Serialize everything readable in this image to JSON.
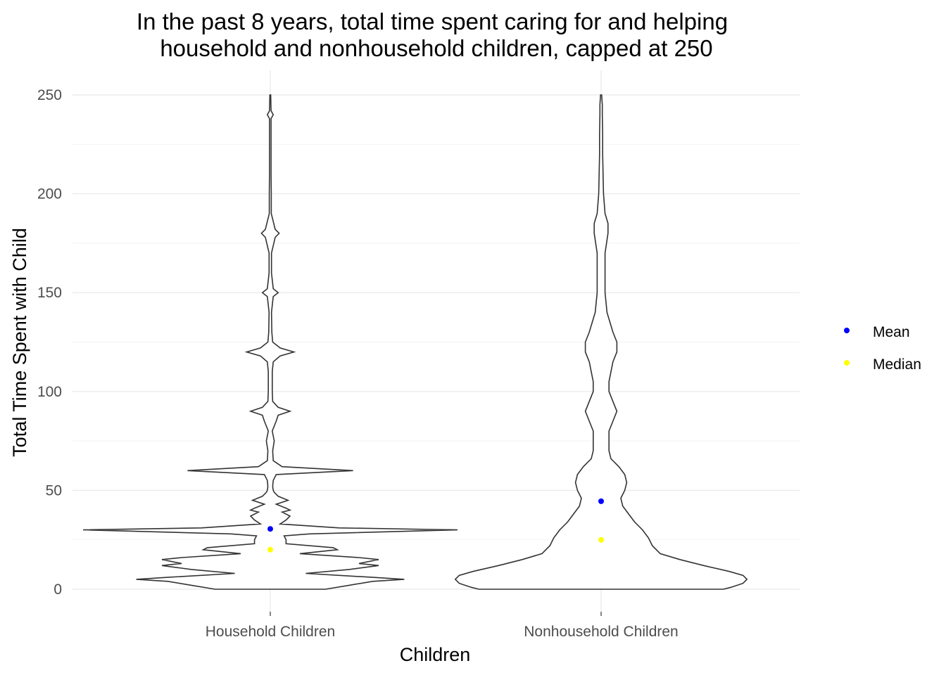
{
  "chart_data": {
    "type": "violin",
    "title_lines": [
      "In the past 8 years, total time spent caring for and helping",
      "household and nonhousehold children, capped at 250"
    ],
    "xlabel": "Children",
    "ylabel": "Total Time Spent with Child",
    "ylim": [
      0,
      250
    ],
    "y_ticks": [
      "0",
      "50",
      "100",
      "150",
      "200",
      "250"
    ],
    "y_tick_values": [
      0,
      50,
      100,
      150,
      200,
      250
    ],
    "categories": [
      "Household Children",
      "Nonhousehold Children"
    ],
    "grid": true,
    "legend_position": "right",
    "legend": [
      {
        "label": "Mean",
        "color": "#0000ff"
      },
      {
        "label": "Median",
        "color": "#ffff00"
      }
    ],
    "mean": [
      30.5,
      44.5
    ],
    "median": [
      20,
      25
    ],
    "density_profiles": [
      {
        "category": "Household Children",
        "y": [
          0,
          2,
          4,
          5,
          6,
          8,
          10,
          12,
          13,
          15,
          16,
          18,
          20,
          21,
          23,
          25,
          27,
          28,
          30,
          31,
          33,
          35,
          37,
          39,
          40,
          41,
          43,
          45,
          47,
          49,
          50,
          52,
          55,
          58,
          60,
          62,
          65,
          70,
          75,
          80,
          85,
          88,
          90,
          92,
          95,
          100,
          110,
          115,
          118,
          120,
          122,
          125,
          130,
          140,
          148,
          150,
          152,
          160,
          170,
          178,
          180,
          182,
          190,
          200,
          210,
          220,
          238,
          240,
          242,
          250
        ],
        "width": [
          0.28,
          0.4,
          0.52,
          0.68,
          0.52,
          0.18,
          0.4,
          0.55,
          0.45,
          0.55,
          0.45,
          0.15,
          0.34,
          0.32,
          0.08,
          0.08,
          0.07,
          0.2,
          0.95,
          0.35,
          0.05,
          0.08,
          0.1,
          0.06,
          0.1,
          0.08,
          0.03,
          0.09,
          0.04,
          0.02,
          0.015,
          0.012,
          0.015,
          0.03,
          0.42,
          0.06,
          0.015,
          0.012,
          0.02,
          0.01,
          0.03,
          0.04,
          0.1,
          0.04,
          0.012,
          0.01,
          0.01,
          0.015,
          0.05,
          0.12,
          0.05,
          0.012,
          0.008,
          0.006,
          0.015,
          0.04,
          0.015,
          0.006,
          0.006,
          0.025,
          0.045,
          0.025,
          0.005,
          0.005,
          0.004,
          0.004,
          0.004,
          0.015,
          0.004,
          0.002
        ]
      },
      {
        "category": "Nonhousehold Children",
        "y": [
          0,
          1,
          3,
          5,
          7,
          9,
          12,
          15,
          18,
          22,
          26,
          30,
          34,
          38,
          42,
          46,
          50,
          54,
          58,
          62,
          66,
          70,
          75,
          80,
          85,
          90,
          95,
          100,
          105,
          110,
          115,
          120,
          125,
          130,
          140,
          150,
          160,
          170,
          180,
          185,
          190,
          200,
          210,
          220,
          230,
          240,
          245,
          250
        ],
        "width": [
          0.62,
          0.66,
          0.72,
          0.74,
          0.72,
          0.65,
          0.52,
          0.4,
          0.3,
          0.26,
          0.24,
          0.21,
          0.17,
          0.14,
          0.11,
          0.1,
          0.12,
          0.13,
          0.12,
          0.09,
          0.05,
          0.04,
          0.04,
          0.04,
          0.06,
          0.08,
          0.06,
          0.04,
          0.04,
          0.05,
          0.06,
          0.08,
          0.08,
          0.06,
          0.03,
          0.02,
          0.02,
          0.02,
          0.035,
          0.035,
          0.02,
          0.012,
          0.01,
          0.008,
          0.008,
          0.006,
          0.006,
          0.003
        ]
      }
    ]
  }
}
